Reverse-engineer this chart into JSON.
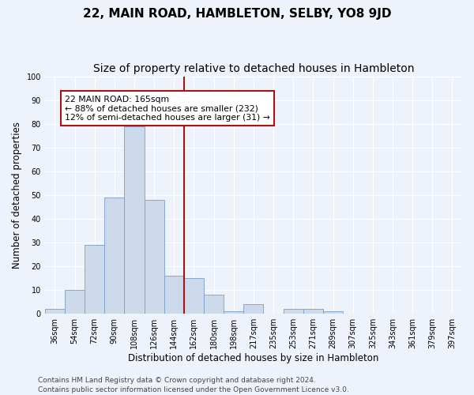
{
  "title": "22, MAIN ROAD, HAMBLETON, SELBY, YO8 9JD",
  "subtitle": "Size of property relative to detached houses in Hambleton",
  "xlabel": "Distribution of detached houses by size in Hambleton",
  "ylabel": "Number of detached properties",
  "bar_labels": [
    "36sqm",
    "54sqm",
    "72sqm",
    "90sqm",
    "108sqm",
    "126sqm",
    "144sqm",
    "162sqm",
    "180sqm",
    "198sqm",
    "217sqm",
    "235sqm",
    "253sqm",
    "271sqm",
    "289sqm",
    "307sqm",
    "325sqm",
    "343sqm",
    "361sqm",
    "379sqm",
    "397sqm"
  ],
  "bar_values": [
    2,
    10,
    29,
    49,
    79,
    48,
    16,
    15,
    8,
    1,
    4,
    0,
    2,
    2,
    1,
    0,
    0,
    0,
    0,
    0,
    0
  ],
  "bar_color": "#ccd9ea",
  "bar_edge_color": "#7a9ec8",
  "vline_color": "#aa1111",
  "annotation_text": "22 MAIN ROAD: 165sqm\n← 88% of detached houses are smaller (232)\n12% of semi-detached houses are larger (31) →",
  "annotation_box_color": "#ffffff",
  "annotation_box_edge": "#aa1111",
  "ylim": [
    0,
    100
  ],
  "yticks": [
    0,
    10,
    20,
    30,
    40,
    50,
    60,
    70,
    80,
    90,
    100
  ],
  "background_color": "#eef2fb",
  "grid_color": "#ffffff",
  "footer_line1": "Contains HM Land Registry data © Crown copyright and database right 2024.",
  "footer_line2": "Contains public sector information licensed under the Open Government Licence v3.0.",
  "title_fontsize": 11,
  "subtitle_fontsize": 10,
  "axis_label_fontsize": 8.5,
  "tick_fontsize": 7,
  "annotation_fontsize": 7.8,
  "footer_fontsize": 6.5
}
